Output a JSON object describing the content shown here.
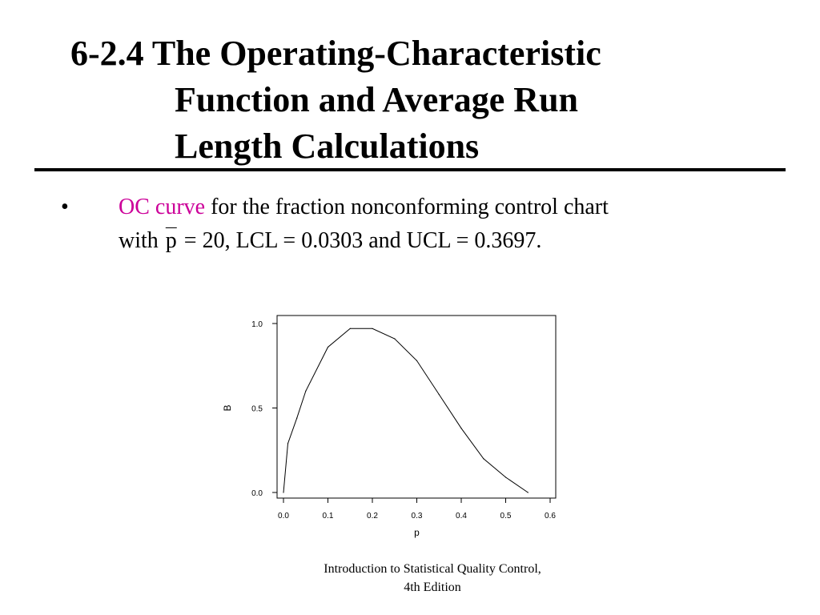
{
  "slide": {
    "title_lines": [
      "6-2.4 The Operating-Characteristic",
      "Function and Average Run",
      "Length Calculations"
    ],
    "bullet": {
      "marker": "•",
      "highlight": "OC curve",
      "text_line1_rest": " for the fraction nonconforming control chart",
      "text_line2_prefix": "with ",
      "pbar_symbol": "p",
      "text_line2_rest": "  = 20, LCL = 0.0303 and UCL = 0.3697."
    },
    "footer_lines": [
      "Introduction to Statistical Quality Control,",
      "4th Edition"
    ],
    "colors": {
      "highlight": "#cc0099",
      "text": "#000000",
      "background": "#ffffff"
    }
  },
  "chart_data": {
    "type": "line",
    "xlabel": "p",
    "ylabel": "B",
    "xlim": [
      0.0,
      0.6
    ],
    "ylim": [
      0.0,
      1.0
    ],
    "xticks": [
      "0.0",
      "0.1",
      "0.2",
      "0.3",
      "0.4",
      "0.5",
      "0.6"
    ],
    "yticks": [
      "0.0",
      "0.5",
      "1.0"
    ],
    "grid": false,
    "series": [
      {
        "x": [
          0.0,
          0.01,
          0.03,
          0.05,
          0.1,
          0.15,
          0.2,
          0.25,
          0.3,
          0.35,
          0.4,
          0.45,
          0.5,
          0.55
        ],
        "y": [
          0.0,
          0.29,
          0.44,
          0.6,
          0.86,
          0.97,
          0.97,
          0.91,
          0.78,
          0.58,
          0.38,
          0.2,
          0.09,
          0.0
        ]
      }
    ]
  }
}
